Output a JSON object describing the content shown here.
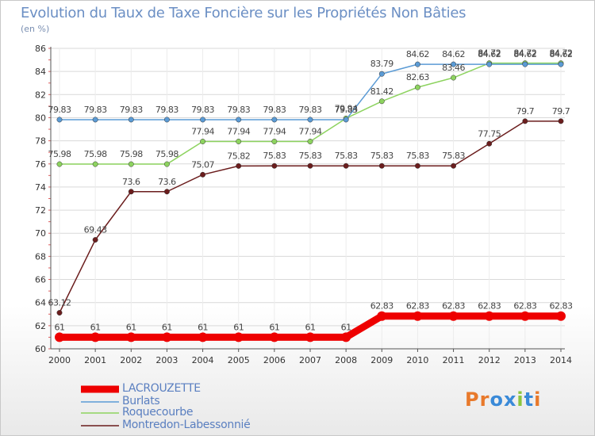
{
  "title": "Evolution du Taux de Taxe Foncière sur les Propriétés Non Bâties",
  "unit": "(en %)",
  "logo": {
    "text": "Proxiti",
    "letters": [
      "P",
      "r",
      "o",
      "x",
      "i",
      "t",
      "i"
    ],
    "colors": [
      "#e8792b",
      "#e8792b",
      "#3a8ad8",
      "#3a8ad8",
      "#8cc63f",
      "#3a8ad8",
      "#e8792b"
    ]
  },
  "chart_data": {
    "type": "line",
    "title": "Evolution du Taux de Taxe Foncière sur les Propriétés Non Bâties",
    "ylabel": "(en %)",
    "xlabel": "",
    "x": [
      "2000",
      "2001",
      "2002",
      "2003",
      "2004",
      "2005",
      "2006",
      "2007",
      "2008",
      "2009",
      "2010",
      "2011",
      "2012",
      "2013",
      "2014"
    ],
    "ylim": [
      60,
      86
    ],
    "yticks": [
      60,
      62,
      64,
      66,
      68,
      70,
      72,
      74,
      76,
      78,
      80,
      82,
      84,
      86
    ],
    "grid": "horizontal",
    "series": [
      {
        "name": "LACROUZETTE",
        "color": "#ee0000",
        "values": [
          61,
          61,
          61,
          61,
          61,
          61,
          61,
          61,
          61,
          62.83,
          62.83,
          62.83,
          62.83,
          62.83,
          62.83
        ],
        "labels": [
          "61",
          "61",
          "61",
          "61",
          "61",
          "61",
          "61",
          "61",
          "61",
          "62.83",
          "62.83",
          "62.83",
          "62.83",
          "62.83",
          "62.83"
        ]
      },
      {
        "name": "Burlats",
        "color": "#5b9bd5",
        "values": [
          79.83,
          79.83,
          79.83,
          79.83,
          79.83,
          79.83,
          79.83,
          79.83,
          79.83,
          83.79,
          84.62,
          84.62,
          84.62,
          84.62,
          84.62
        ],
        "labels": [
          "79.83",
          "79.83",
          "79.83",
          "79.83",
          "79.83",
          "79.83",
          "79.83",
          "79.83",
          "79.83",
          "83.79",
          "84.62",
          "84.62",
          "84.62",
          "84.62",
          "84.62"
        ]
      },
      {
        "name": "Roquecourbe",
        "color": "#8dd35f",
        "values": [
          75.98,
          75.98,
          75.98,
          75.98,
          77.94,
          77.94,
          77.94,
          77.94,
          79.94,
          81.42,
          82.63,
          83.46,
          84.72,
          84.72,
          84.72
        ],
        "labels": [
          "75.98",
          "75.98",
          "75.98",
          "75.98",
          "77.94",
          "77.94",
          "77.94",
          "77.94",
          "79.94",
          "81.42",
          "82.63",
          "83.46",
          "84.72",
          "84.72",
          "84.72"
        ]
      },
      {
        "name": "Montredon-Labessonnié",
        "color": "#6b1d1d",
        "values": [
          63.12,
          69.43,
          73.6,
          73.6,
          75.07,
          75.82,
          75.83,
          75.83,
          75.83,
          75.83,
          75.83,
          75.83,
          77.75,
          79.7,
          79.7
        ],
        "labels": [
          "63.12",
          "69.43",
          "73.6",
          "73.6",
          "75.07",
          "75.82",
          "75.83",
          "75.83",
          "75.83",
          "75.83",
          "75.83",
          "75.83",
          "77.75",
          "79.7",
          "79.7"
        ]
      }
    ]
  }
}
